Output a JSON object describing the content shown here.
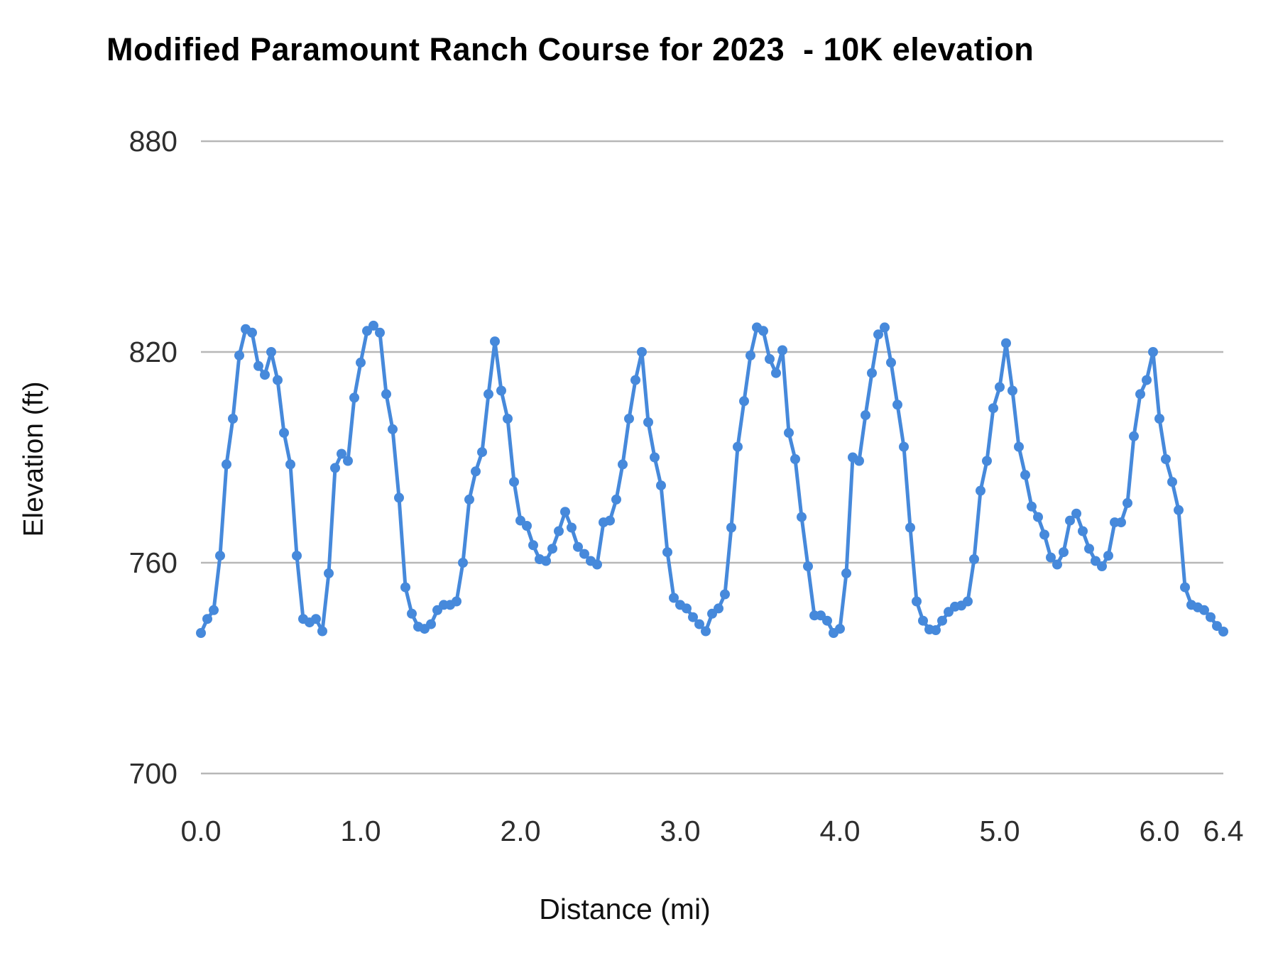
{
  "title": "Modified Paramount Ranch Course for 2023  - 10K elevation",
  "chart_data": {
    "type": "line",
    "title": "Modified Paramount Ranch Course for 2023  - 10K elevation",
    "xlabel": "Distance (mi)",
    "ylabel": "Elevation (ft)",
    "xlim": [
      0,
      6.4
    ],
    "ylim": [
      700,
      880
    ],
    "grid": "horizontal",
    "legend": "none",
    "line_color": "#4689db",
    "grid_color": "#b7b7b7",
    "point_radius": 7,
    "line_width": 5,
    "y_ticks": [
      {
        "value": 880,
        "label": "880"
      },
      {
        "value": 820,
        "label": "820"
      },
      {
        "value": 760,
        "label": "760"
      },
      {
        "value": 700,
        "label": "700"
      }
    ],
    "x_ticks": [
      {
        "value": 0.0,
        "label": "0.0"
      },
      {
        "value": 1.0,
        "label": "1.0"
      },
      {
        "value": 2.0,
        "label": "2.0"
      },
      {
        "value": 3.0,
        "label": "3.0"
      },
      {
        "value": 4.0,
        "label": "4.0"
      },
      {
        "value": 5.0,
        "label": "5.0"
      },
      {
        "value": 6.0,
        "label": "6.0"
      },
      {
        "value": 6.4,
        "label": "6.4"
      }
    ],
    "series_name": "10K elevation",
    "x_start": 0,
    "x_step": 0.04,
    "elevations": [
      740,
      744,
      746.5,
      762,
      788,
      801,
      819,
      826.5,
      825.5,
      816,
      813.5,
      820,
      812,
      797,
      788,
      762,
      744,
      743,
      744,
      740.5,
      757,
      787,
      791,
      789,
      807,
      817,
      826,
      827.5,
      825.5,
      808,
      798,
      778.5,
      753,
      745.5,
      741.8,
      741.2,
      742.5,
      746.5,
      748,
      748,
      749,
      760,
      778,
      786,
      791.5,
      808,
      823,
      809,
      801,
      783,
      772,
      770.5,
      765,
      761,
      760.5,
      764,
      769,
      774.5,
      770,
      764.5,
      762.5,
      760.5,
      759.5,
      771.5,
      772,
      778,
      788,
      801,
      812,
      820,
      800,
      790,
      782,
      763,
      750,
      748,
      747,
      744.5,
      742.5,
      740.5,
      745.5,
      747,
      751,
      770,
      793,
      806,
      819,
      827,
      826,
      818,
      814,
      820.5,
      797,
      789.5,
      773,
      759,
      745,
      745,
      743.5,
      740,
      741.2,
      757,
      790,
      789,
      802,
      814,
      825,
      827,
      817,
      805,
      793,
      770,
      749,
      743.5,
      741,
      740.8,
      743.5,
      746,
      747.5,
      747.8,
      749,
      761,
      780.5,
      789,
      804,
      810,
      822.5,
      809,
      793,
      785,
      776,
      773,
      768,
      761.5,
      759.5,
      763,
      772,
      774,
      769,
      764,
      760.5,
      759,
      762,
      771.5,
      771.5,
      777,
      796,
      808,
      812,
      820,
      801,
      789.5,
      783,
      775,
      753,
      748,
      747.3,
      746.5,
      744.5,
      742,
      740.4
    ]
  }
}
